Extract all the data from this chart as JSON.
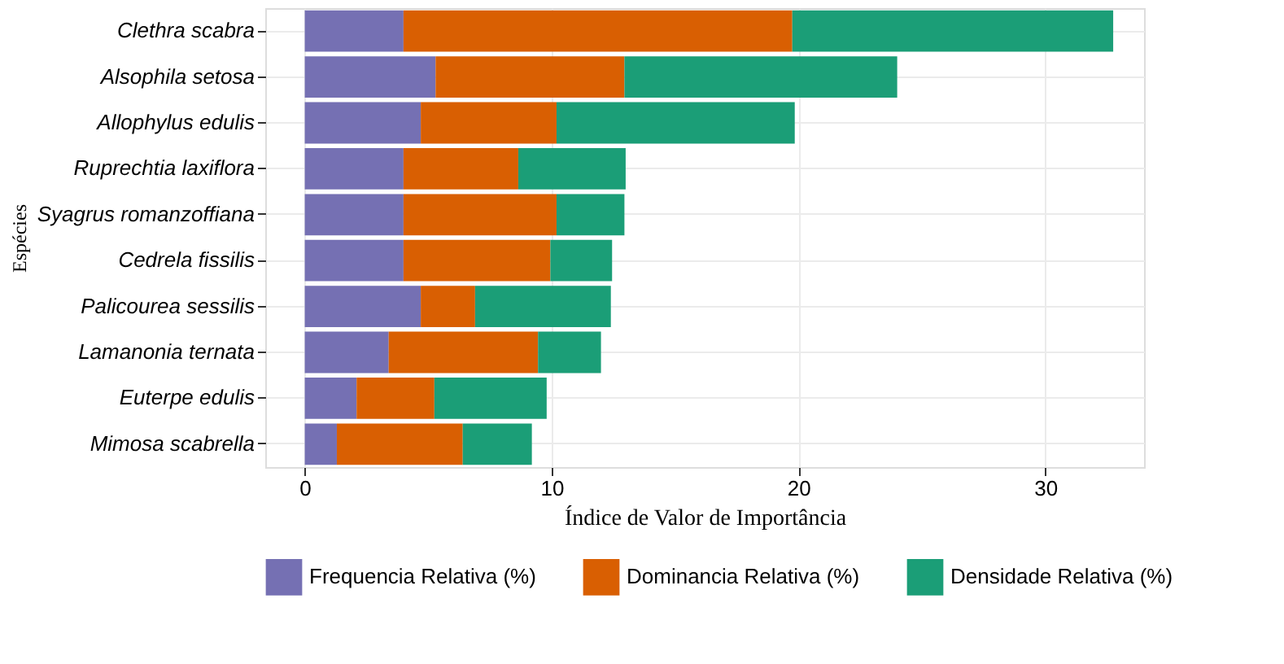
{
  "chart_data": {
    "type": "bar",
    "orientation": "horizontal",
    "stacked": true,
    "xlabel": "Índice de Valor de Importância",
    "ylabel": "Espécies",
    "categories": [
      "Clethra scabra",
      "Alsophila setosa",
      "Allophylus edulis",
      "Ruprechtia laxiflora",
      "Syagrus romanzoffiana",
      "Cedrela fissilis",
      "Palicourea sessilis",
      "Lamanonia ternata",
      "Euterpe edulis",
      "Mimosa scabrella"
    ],
    "series": [
      {
        "name": "Frequencia Relativa (%)",
        "color": "#7570b3",
        "values": [
          4.0,
          5.3,
          4.7,
          4.0,
          4.0,
          4.0,
          4.7,
          3.4,
          2.1,
          1.3
        ]
      },
      {
        "name": "Dominancia Relativa (%)",
        "color": "#d95f02",
        "values": [
          15.75,
          7.65,
          5.5,
          4.65,
          6.2,
          5.95,
          2.2,
          6.05,
          3.15,
          5.1
        ]
      },
      {
        "name": "Densidade Relativa (%)",
        "color": "#1b9e77",
        "values": [
          13.0,
          11.05,
          9.65,
          4.35,
          2.75,
          2.5,
          5.5,
          2.55,
          4.55,
          2.8
        ]
      }
    ],
    "xlim": [
      -1.6,
      34
    ],
    "xticks": [
      0,
      10,
      20,
      30
    ],
    "grid": true,
    "legend": "bottom"
  }
}
